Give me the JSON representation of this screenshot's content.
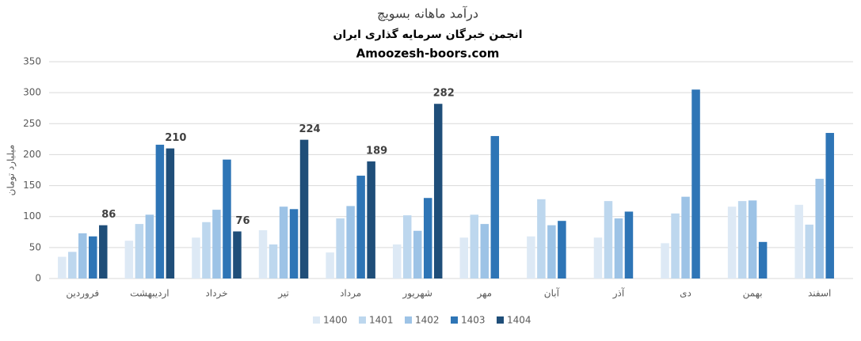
{
  "chart_data": {
    "type": "bar",
    "title": "درآمد ماهانه بسویچ",
    "subtitle": "انجمن خبرگان سرمایه گذاری ایران",
    "source": "Amoozesh-boors.com",
    "y_label": "میلیارد تومان",
    "categories": [
      "فروردین",
      "اردیبهشت",
      "خرداد",
      "تیر",
      "مرداد",
      "شهریور",
      "مهر",
      "آبان",
      "آذر",
      "دی",
      "بهمن",
      "اسفند"
    ],
    "series": [
      {
        "name": "1400",
        "color": "#dde9f5",
        "values": [
          35,
          61,
          66,
          78,
          42,
          55,
          66,
          68,
          66,
          57,
          116,
          119
        ]
      },
      {
        "name": "1401",
        "color": "#bdd7ee",
        "values": [
          43,
          88,
          91,
          55,
          97,
          102,
          103,
          128,
          125,
          105,
          125,
          87
        ]
      },
      {
        "name": "1402",
        "color": "#9dc3e6",
        "values": [
          73,
          103,
          111,
          116,
          117,
          77,
          88,
          86,
          97,
          132,
          126,
          161
        ]
      },
      {
        "name": "1403",
        "color": "#2e75b6",
        "values": [
          68,
          216,
          192,
          112,
          166,
          130,
          230,
          93,
          108,
          305,
          59,
          235
        ]
      },
      {
        "name": "1404",
        "color": "#1f4e79",
        "values": [
          86,
          210,
          76,
          224,
          189,
          282,
          null,
          null,
          null,
          null,
          null,
          null
        ],
        "data_labels": true
      }
    ],
    "ylim": [
      0,
      350
    ],
    "yticks": [
      0,
      50,
      100,
      150,
      200,
      250,
      300,
      350
    ],
    "grid": true,
    "legend": "bottom"
  }
}
